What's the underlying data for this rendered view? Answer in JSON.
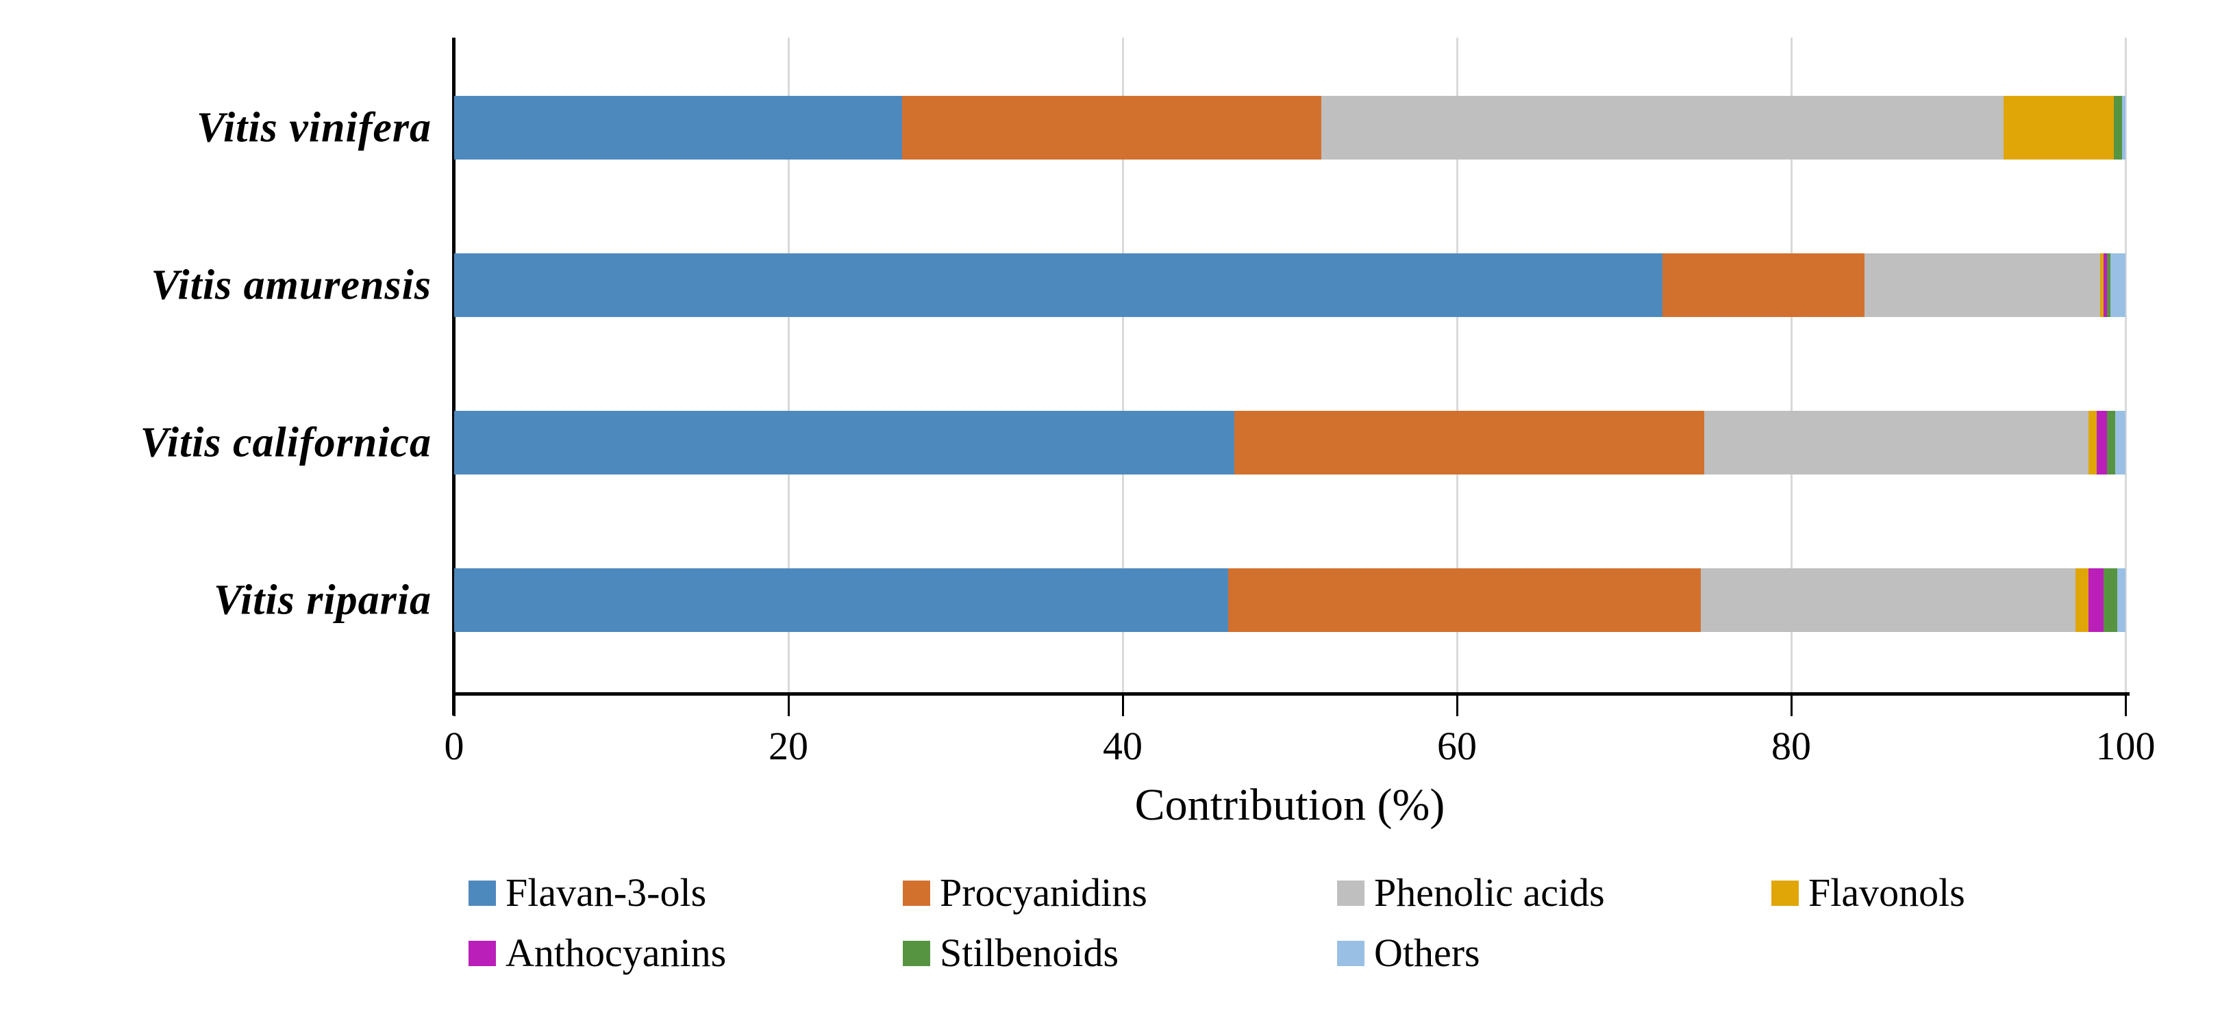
{
  "chart_data": {
    "type": "bar",
    "orientation": "horizontal",
    "stacked": true,
    "title": "",
    "xlabel": "Contribution (%)",
    "ylabel": "",
    "xlim": [
      0,
      100
    ],
    "x_ticks": [
      0,
      20,
      40,
      60,
      80,
      100
    ],
    "grid": true,
    "legend_position": "bottom",
    "categories": [
      "Vitis vinifera",
      "Vitis amurensis",
      "Vitis californica",
      "Vitis riparia"
    ],
    "series": [
      {
        "name": "Flavan-3-ols",
        "color": "#4E89BD",
        "values": [
          26.8,
          72.3,
          46.7,
          46.3
        ]
      },
      {
        "name": "Procyanidins",
        "color": "#D2712E",
        "values": [
          25.1,
          12.1,
          28.1,
          28.3
        ]
      },
      {
        "name": "Phenolic acids",
        "color": "#BFBFBF",
        "values": [
          40.8,
          14.1,
          23.0,
          22.4
        ]
      },
      {
        "name": "Flavonols",
        "color": "#E0A608",
        "values": [
          6.6,
          0.2,
          0.5,
          0.8
        ]
      },
      {
        "name": "Anthocyanins",
        "color": "#BA1FBA",
        "values": [
          0.0,
          0.2,
          0.6,
          0.9
        ]
      },
      {
        "name": "Stilbenoids",
        "color": "#579441",
        "values": [
          0.5,
          0.2,
          0.5,
          0.8
        ]
      },
      {
        "name": "Others",
        "color": "#99BFE4",
        "values": [
          0.2,
          0.9,
          0.6,
          0.5
        ]
      }
    ],
    "colors": {
      "gridline": "#D9D9D9",
      "axis": "#000000",
      "text": "#000000"
    }
  }
}
